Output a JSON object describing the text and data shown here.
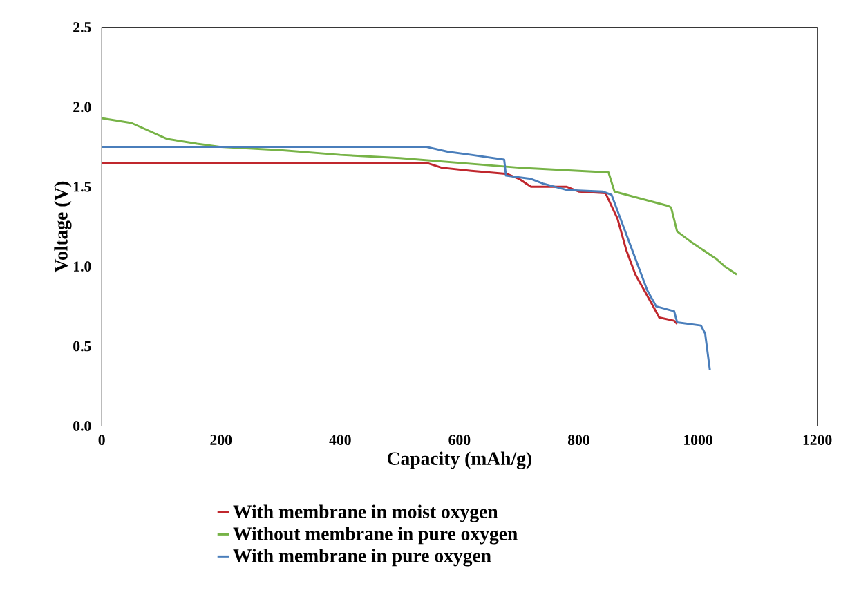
{
  "chart_data": {
    "type": "line",
    "xlabel": "Capacity (mAh/g)",
    "ylabel": "Voltage (V)",
    "xlim": [
      0,
      1200
    ],
    "ylim": [
      0,
      2.5
    ],
    "xticks": [
      0,
      200,
      400,
      600,
      800,
      1000,
      1200
    ],
    "yticks": [
      {
        "value": 0,
        "label": "0.0"
      },
      {
        "value": 0.5,
        "label": "0.5"
      },
      {
        "value": 1,
        "label": "1.0"
      },
      {
        "value": 1.5,
        "label": "1.5"
      },
      {
        "value": 2,
        "label": "2.0"
      },
      {
        "value": 2.5,
        "label": "2.5"
      }
    ],
    "grid": false,
    "legend": "bottom",
    "marker": "none",
    "line_style": "solid",
    "series": [
      {
        "name": "With membrane in moist oxygen",
        "color": "#c0272d",
        "x": [
          0,
          545,
          570,
          620,
          680,
          700,
          720,
          780,
          800,
          845,
          865,
          880,
          895,
          910,
          925,
          935,
          960,
          965
        ],
        "values": [
          1.65,
          1.65,
          1.62,
          1.6,
          1.58,
          1.55,
          1.5,
          1.5,
          1.47,
          1.46,
          1.3,
          1.1,
          0.95,
          0.85,
          0.75,
          0.68,
          0.66,
          0.64
        ]
      },
      {
        "name": "Without membrane in pure oxygen",
        "color": "#77b347",
        "x": [
          0,
          50,
          80,
          110,
          160,
          200,
          300,
          400,
          500,
          600,
          700,
          800,
          850,
          860,
          900,
          930,
          950,
          955,
          965,
          990,
          1010,
          1030,
          1045,
          1065
        ],
        "values": [
          1.93,
          1.9,
          1.85,
          1.8,
          1.77,
          1.75,
          1.73,
          1.7,
          1.68,
          1.65,
          1.62,
          1.6,
          1.59,
          1.47,
          1.43,
          1.4,
          1.38,
          1.37,
          1.22,
          1.15,
          1.1,
          1.05,
          1.0,
          0.95
        ]
      },
      {
        "name": "With membrane in pure oxygen",
        "color": "#4a7ebb",
        "x": [
          0,
          545,
          580,
          620,
          675,
          678,
          720,
          740,
          780,
          840,
          855,
          870,
          890,
          905,
          915,
          930,
          960,
          965,
          1005,
          1012,
          1020
        ],
        "values": [
          1.75,
          1.75,
          1.72,
          1.7,
          1.67,
          1.57,
          1.55,
          1.52,
          1.48,
          1.47,
          1.45,
          1.3,
          1.1,
          0.95,
          0.85,
          0.75,
          0.72,
          0.65,
          0.63,
          0.58,
          0.35
        ]
      }
    ]
  }
}
